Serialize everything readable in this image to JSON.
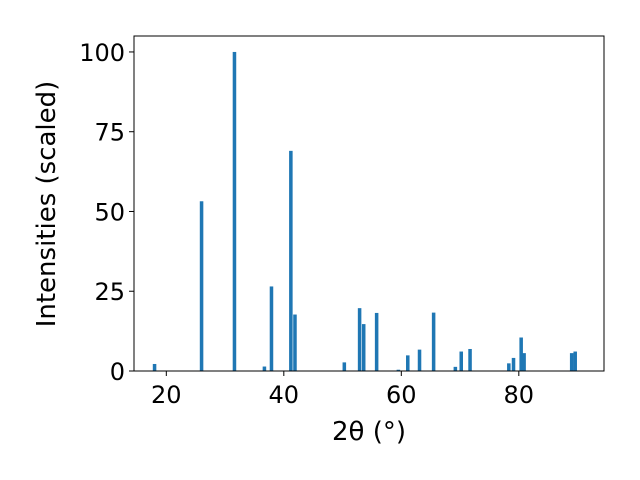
{
  "chart_data": {
    "type": "bar",
    "xlabel": "2θ (°)",
    "ylabel": "Intensities (scaled)",
    "xlim": [
      14.5,
      94.5
    ],
    "ylim": [
      0,
      105
    ],
    "xticks": [
      20,
      40,
      60,
      80
    ],
    "yticks": [
      0,
      25,
      50,
      75,
      100
    ],
    "grid": false,
    "bar_color": "#1f77b4",
    "bar_width": 0.6,
    "x": [
      18.0,
      26.0,
      31.6,
      36.7,
      37.9,
      41.2,
      41.9,
      50.3,
      52.9,
      53.6,
      55.8,
      59.5,
      61.1,
      63.1,
      65.5,
      69.2,
      70.2,
      71.7,
      78.3,
      79.1,
      80.4,
      80.9,
      89.0,
      89.6
    ],
    "values": [
      2.2,
      53.2,
      100.0,
      1.4,
      26.5,
      69.0,
      17.7,
      2.7,
      19.7,
      14.7,
      18.2,
      0.4,
      4.9,
      6.7,
      18.3,
      1.3,
      6.1,
      6.9,
      2.4,
      4.1,
      10.5,
      5.6,
      5.6,
      6.1
    ]
  }
}
